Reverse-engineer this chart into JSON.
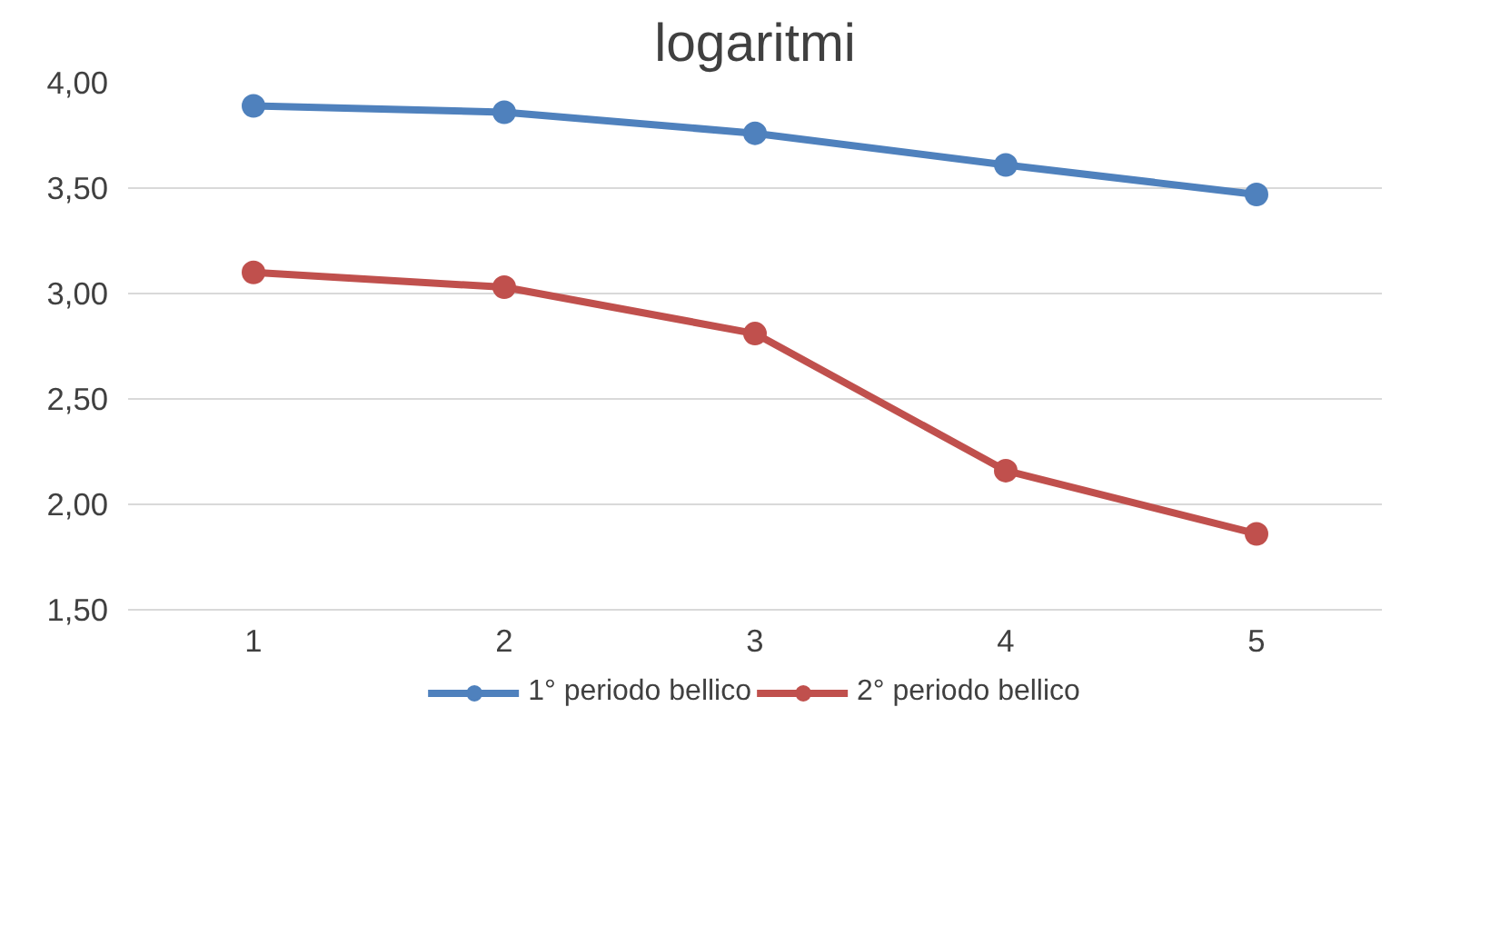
{
  "chart_data": {
    "type": "line",
    "title": "logaritmi",
    "categories": [
      "1",
      "2",
      "3",
      "4",
      "5"
    ],
    "series": [
      {
        "name": "1° periodo bellico",
        "color": "#4f81bd",
        "values": [
          3.89,
          3.86,
          3.76,
          3.61,
          3.47
        ]
      },
      {
        "name": "2° periodo bellico",
        "color": "#c0504d",
        "values": [
          3.1,
          3.03,
          2.81,
          2.16,
          1.86
        ]
      }
    ],
    "ylim": [
      1.5,
      4.0
    ],
    "yticks": [
      {
        "value": 1.5,
        "label": "1,50"
      },
      {
        "value": 2.0,
        "label": "2,00"
      },
      {
        "value": 2.5,
        "label": "2,50"
      },
      {
        "value": 3.0,
        "label": "3,00"
      },
      {
        "value": 3.5,
        "label": "3,50"
      },
      {
        "value": 4.0,
        "label": "4,00"
      }
    ],
    "grid": "y",
    "legend": "bottom",
    "marker": "circle",
    "line_style": "solid"
  }
}
